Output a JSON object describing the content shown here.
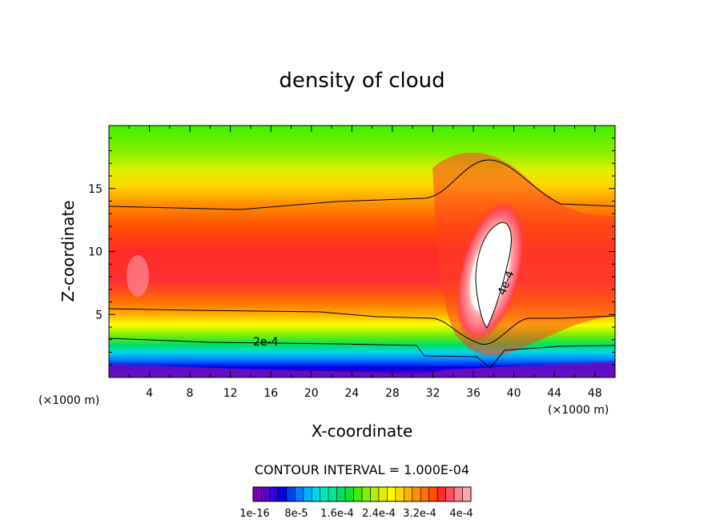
{
  "chart_data": {
    "type": "heatmap",
    "title": "density of cloud",
    "xlabel": "X-coordinate",
    "ylabel": "Z-coordinate",
    "x_unit": "(×1000 m)",
    "x_ticks": [
      4,
      8,
      12,
      16,
      20,
      24,
      28,
      32,
      36,
      40,
      44,
      48
    ],
    "y_ticks": [
      5,
      10,
      15
    ],
    "xlim": [
      0,
      50
    ],
    "ylim": [
      0,
      20
    ],
    "contour_interval_text": "CONTOUR INTERVAL = 1.000E-04",
    "contour_labels": [
      "2e-4",
      "4e-4"
    ],
    "colorbar": {
      "tick_labels": [
        "1e-16",
        "8e-5",
        "1.6e-4",
        "2.4e-4",
        "3.2e-4",
        "4e-4"
      ],
      "colors": [
        "#7a00b0",
        "#5a00c8",
        "#3000d8",
        "#0000e6",
        "#0040f0",
        "#0080ff",
        "#00b0ff",
        "#00d8e8",
        "#00e8c0",
        "#00e890",
        "#00e060",
        "#10e030",
        "#40f000",
        "#80f000",
        "#b0f000",
        "#e0f000",
        "#ffff00",
        "#ffd800",
        "#ffb000",
        "#ff9000",
        "#ff7000",
        "#ff5000",
        "#ff2a2a",
        "#ff5060",
        "#ff8088",
        "#ffa8ac"
      ]
    }
  }
}
